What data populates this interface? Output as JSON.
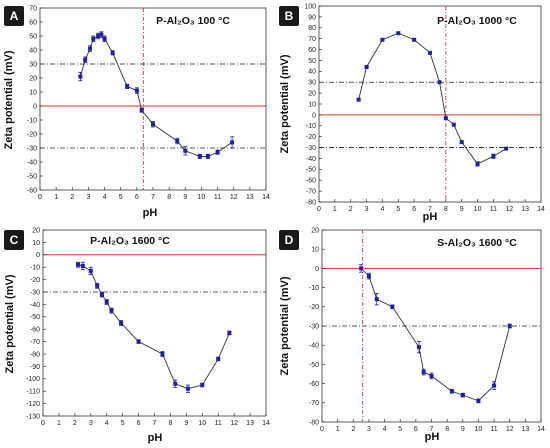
{
  "colors": {
    "series": "#1f1fa8",
    "line": "#333333",
    "zero_line": "#e03030",
    "iep_line": "#d02020",
    "threshold_line": "#222222",
    "badge": "#1a1a1a"
  },
  "chart_data": [
    {
      "type": "line",
      "badge": "A",
      "title": "P-Al₂O₃ 100 °C",
      "xlabel": "pH",
      "ylabel": "Zeta potential (mV)",
      "xlim": [
        0,
        14
      ],
      "ylim": [
        -60,
        70
      ],
      "xticks": [
        0,
        1,
        2,
        3,
        4,
        5,
        6,
        7,
        8,
        9,
        10,
        11,
        12,
        13,
        14
      ],
      "yticks": [
        -60,
        -50,
        -40,
        -30,
        -20,
        -10,
        0,
        10,
        20,
        30,
        40,
        50,
        60,
        70
      ],
      "x": [
        2.5,
        2.8,
        3.1,
        3.3,
        3.6,
        3.8,
        4.0,
        4.5,
        5.4,
        6.0,
        6.3,
        7.0,
        8.5,
        9.0,
        9.9,
        10.4,
        11.0,
        11.9
      ],
      "y": [
        21,
        33,
        41,
        48,
        50,
        51,
        48,
        38,
        14,
        11,
        -3,
        -13,
        -25,
        -32,
        -36,
        -36,
        -33,
        -26
      ],
      "error": [
        3,
        2,
        2,
        2,
        2,
        2,
        2,
        1.5,
        1.5,
        2,
        1.5,
        2,
        2,
        3,
        1.5,
        1.5,
        1.5,
        4
      ],
      "threshold_lines": [
        30,
        -30
      ],
      "zero_line": 0,
      "iep_x": 6.4,
      "grid": false
    },
    {
      "type": "line",
      "badge": "B",
      "title": "P-Al₂O₃ 1000 °C",
      "xlabel": "pH",
      "ylabel": "Zeta potential (mV)",
      "xlim": [
        0,
        14
      ],
      "ylim": [
        -80,
        100
      ],
      "xticks": [
        0,
        1,
        2,
        3,
        4,
        5,
        6,
        7,
        8,
        9,
        10,
        11,
        12,
        13,
        14
      ],
      "yticks": [
        -80,
        -70,
        -60,
        -50,
        -40,
        -30,
        -20,
        -10,
        0,
        10,
        20,
        30,
        40,
        50,
        60,
        70,
        80,
        90,
        100
      ],
      "x": [
        2.5,
        3.0,
        4.0,
        5.0,
        6.0,
        7.0,
        7.6,
        8.0,
        8.5,
        9.0,
        10.0,
        11.0,
        11.8
      ],
      "y": [
        14,
        44,
        69,
        75,
        69,
        57,
        30,
        -3,
        -9,
        -25,
        -45,
        -38,
        -31
      ],
      "error": [
        1,
        1,
        1,
        1,
        1,
        1,
        1,
        1,
        1,
        1,
        2,
        2,
        1
      ],
      "threshold_lines": [
        30,
        -30
      ],
      "zero_line": 0,
      "iep_x": 8.0,
      "grid": false
    },
    {
      "type": "line",
      "badge": "C",
      "title": "P-Al₂O₃ 1600 °C",
      "xlabel": "pH",
      "ylabel": "Zeta potential (mV)",
      "xlim": [
        0,
        14
      ],
      "ylim": [
        -130,
        20
      ],
      "xticks": [
        0,
        1,
        2,
        3,
        4,
        5,
        6,
        7,
        8,
        9,
        10,
        11,
        12,
        13,
        14
      ],
      "yticks": [
        -130,
        -120,
        -110,
        -100,
        -90,
        -80,
        -70,
        -60,
        -50,
        -40,
        -30,
        -20,
        -10,
        0,
        10,
        20
      ],
      "x": [
        2.2,
        2.5,
        3.0,
        3.4,
        3.7,
        4.0,
        4.3,
        4.9,
        6.0,
        7.5,
        8.3,
        9.1,
        10.0,
        11.0,
        11.7
      ],
      "y": [
        -8,
        -9,
        -13,
        -25,
        -32,
        -38,
        -45,
        -55,
        -70,
        -80,
        -104,
        -108,
        -105,
        -84,
        -63
      ],
      "error": [
        2,
        3,
        3,
        2,
        2,
        2,
        2,
        2,
        1.5,
        2,
        3,
        3,
        1.5,
        1.5,
        1.5
      ],
      "threshold_lines": [
        -30
      ],
      "zero_line": 0,
      "grid": false
    },
    {
      "type": "line",
      "badge": "D",
      "title": "S-Al₂O₃ 1600 °C",
      "xlabel": "pH",
      "ylabel": "Zeta potential (mV)",
      "xlim": [
        0,
        14
      ],
      "ylim": [
        -80,
        20
      ],
      "xticks": [
        0,
        1,
        2,
        3,
        4,
        5,
        6,
        7,
        8,
        9,
        10,
        11,
        12,
        13,
        14
      ],
      "yticks": [
        -80,
        -70,
        -60,
        -50,
        -40,
        -30,
        -20,
        -10,
        0,
        10,
        20
      ],
      "x": [
        2.5,
        3.0,
        3.5,
        4.5,
        6.2,
        6.5,
        7.0,
        8.3,
        9.0,
        10.0,
        11.0,
        12.0
      ],
      "y": [
        0,
        -4,
        -16,
        -20,
        -41,
        -54,
        -56,
        -64,
        -66,
        -69,
        -61,
        -30
      ],
      "error": [
        2,
        1.5,
        3,
        1,
        3,
        1.5,
        1.5,
        1,
        1,
        1,
        2,
        1
      ],
      "threshold_lines": [
        -30
      ],
      "zero_line": 0,
      "iep_x": 2.6,
      "grid": false
    }
  ]
}
